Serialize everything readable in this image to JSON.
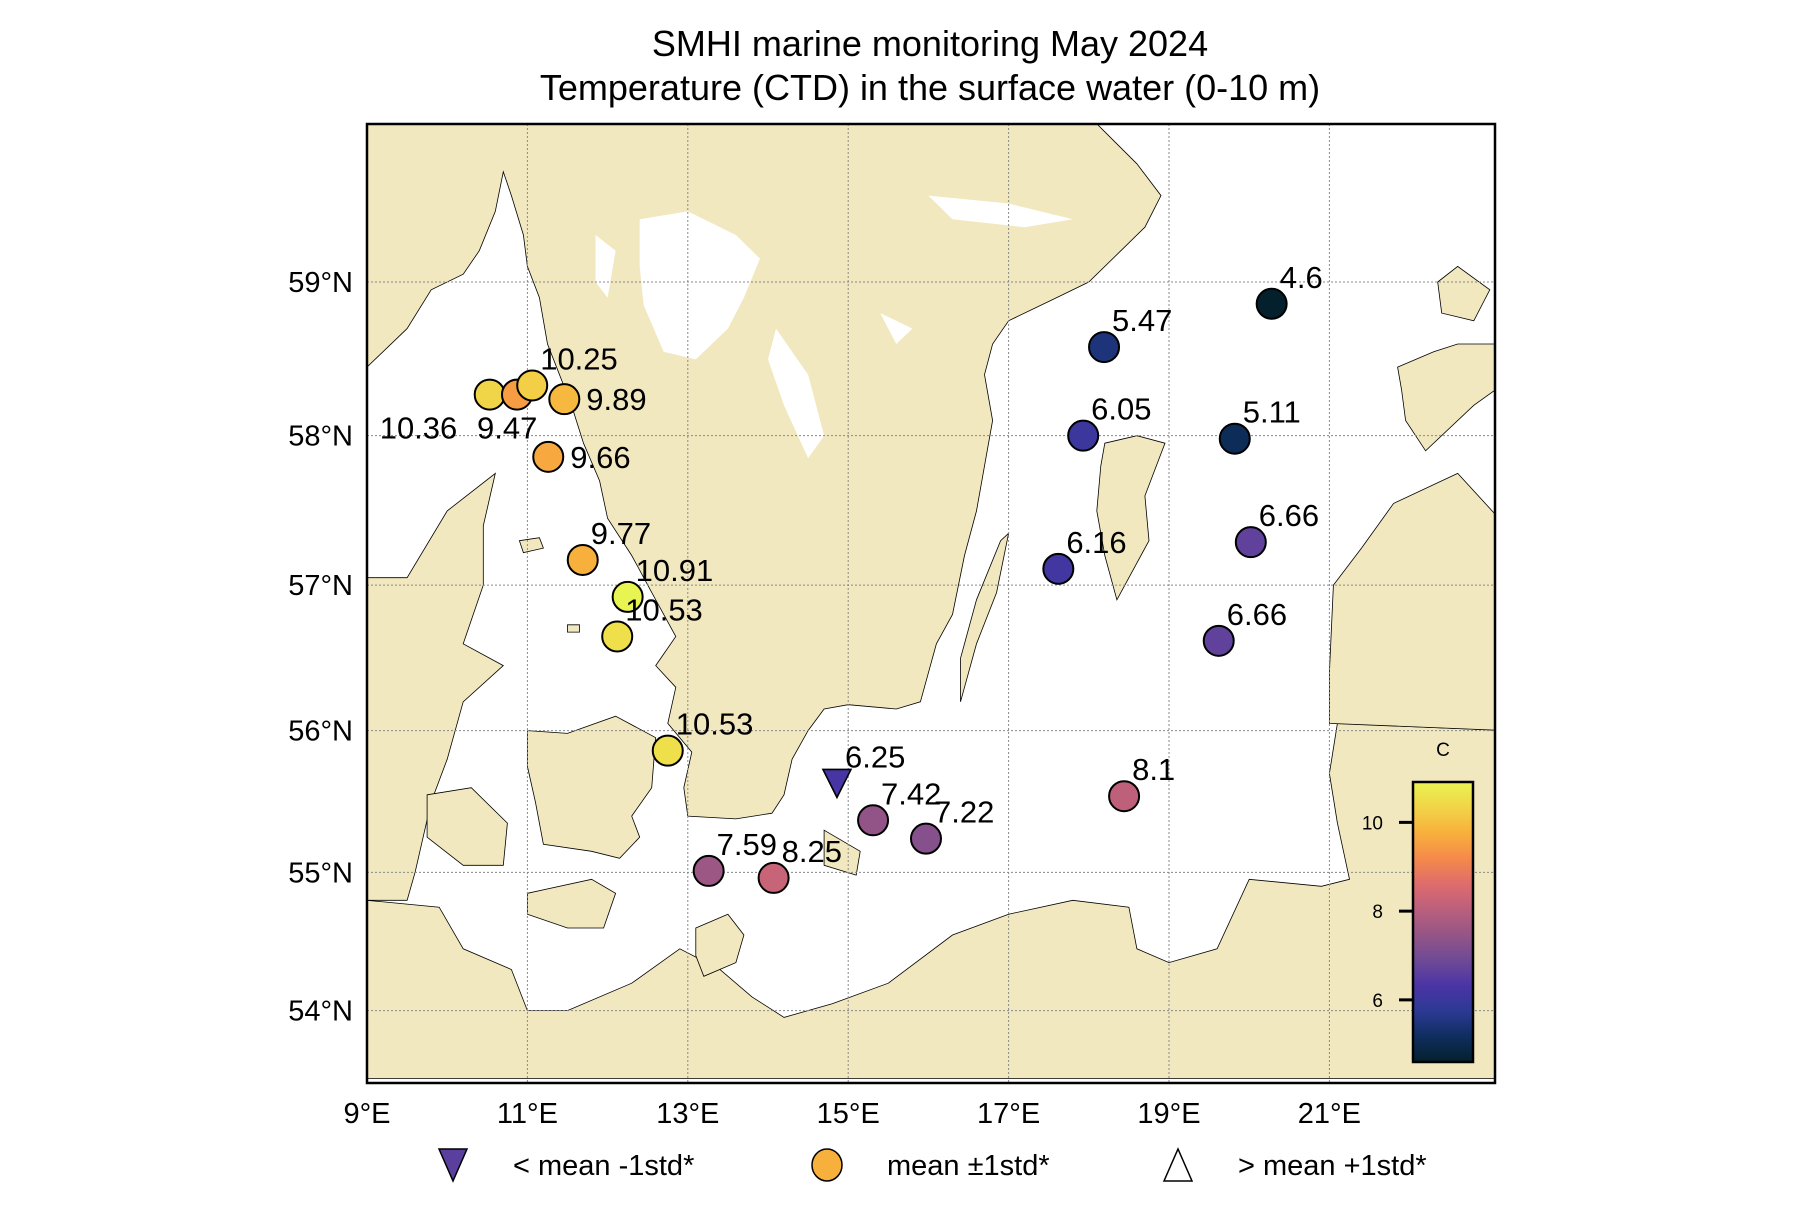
{
  "chart_data": {
    "type": "scatter",
    "map_type": "station map",
    "title": "SMHI marine monitoring May 2024",
    "subtitle": "Temperature (CTD) in the surface water (0-10 m)",
    "extent": {
      "lon": [
        9.0,
        23.07
      ],
      "lat": [
        53.6,
        60.0
      ]
    },
    "grid": true,
    "xticks": [
      {
        "value": 9,
        "label": "9°E"
      },
      {
        "value": 11,
        "label": "11°E"
      },
      {
        "value": 13,
        "label": "13°E"
      },
      {
        "value": 15,
        "label": "15°E"
      },
      {
        "value": 17,
        "label": "17°E"
      },
      {
        "value": 19,
        "label": "19°E"
      },
      {
        "value": 21,
        "label": "21°E"
      }
    ],
    "yticks": [
      {
        "value": 54,
        "label": "54°N"
      },
      {
        "value": 55,
        "label": "55°N"
      },
      {
        "value": 56,
        "label": "56°N"
      },
      {
        "value": 57,
        "label": "57°N"
      },
      {
        "value": 58,
        "label": "58°N"
      },
      {
        "value": 59,
        "label": "59°N"
      }
    ],
    "colorbar": {
      "label": "C",
      "range": [
        4.6,
        10.91
      ],
      "ticks": [
        6,
        8,
        10
      ],
      "colormap": "thermal",
      "stops": [
        "#04202c",
        "#0f2d5e",
        "#2b3a94",
        "#4b34a5",
        "#6f4a95",
        "#955586",
        "#bb5f7d",
        "#df6c6c",
        "#f58a4a",
        "#f8b03c",
        "#f1d448",
        "#e8f451"
      ],
      "placement": "lower-right"
    },
    "stations": [
      {
        "value": 10.36,
        "label": "10.36",
        "lon": 10.53,
        "lat": 58.27,
        "symbol": "circle",
        "label_pos": "below-left"
      },
      {
        "value": 9.47,
        "label": "9.47",
        "lon": 10.87,
        "lat": 58.27,
        "symbol": "circle",
        "label_pos": "below"
      },
      {
        "value": 10.25,
        "label": "10.25",
        "lon": 11.06,
        "lat": 58.33,
        "symbol": "circle",
        "label_pos": "above-right"
      },
      {
        "value": 9.89,
        "label": "9.89",
        "lon": 11.46,
        "lat": 58.24,
        "symbol": "circle",
        "label_pos": "right"
      },
      {
        "value": 9.66,
        "label": "9.66",
        "lon": 11.26,
        "lat": 57.86,
        "symbol": "circle",
        "label_pos": "right"
      },
      {
        "value": 9.77,
        "label": "9.77",
        "lon": 11.69,
        "lat": 57.17,
        "symbol": "circle",
        "label_pos": "above-right"
      },
      {
        "value": 10.91,
        "label": "10.91",
        "lon": 12.25,
        "lat": 56.92,
        "symbol": "circle",
        "label_pos": "above-right"
      },
      {
        "value": 10.53,
        "label": "10.53",
        "lon": 12.12,
        "lat": 56.65,
        "symbol": "circle",
        "label_pos": "above-right"
      },
      {
        "value": 10.53,
        "label": "10.53",
        "lon": 12.75,
        "lat": 55.86,
        "symbol": "circle",
        "label_pos": "above-right"
      },
      {
        "value": 6.25,
        "label": "6.25",
        "lon": 14.86,
        "lat": 55.63,
        "symbol": "triangle-down",
        "label_pos": "above-right"
      },
      {
        "value": 7.42,
        "label": "7.42",
        "lon": 15.31,
        "lat": 55.37,
        "symbol": "circle",
        "label_pos": "above-right"
      },
      {
        "value": 7.22,
        "label": "7.22",
        "lon": 15.97,
        "lat": 55.24,
        "symbol": "circle",
        "label_pos": "above-right"
      },
      {
        "value": 7.59,
        "label": "7.59",
        "lon": 13.26,
        "lat": 55.01,
        "symbol": "circle",
        "label_pos": "above-right"
      },
      {
        "value": 8.25,
        "label": "8.25",
        "lon": 14.07,
        "lat": 54.96,
        "symbol": "circle",
        "label_pos": "above-right"
      },
      {
        "value": 8.1,
        "label": "8.1",
        "lon": 18.44,
        "lat": 55.54,
        "symbol": "circle",
        "label_pos": "above-right"
      },
      {
        "value": 6.66,
        "label": "6.66",
        "lon": 19.62,
        "lat": 56.62,
        "symbol": "circle",
        "label_pos": "above-right"
      },
      {
        "value": 6.66,
        "label": "6.66",
        "lon": 20.02,
        "lat": 57.29,
        "symbol": "circle",
        "label_pos": "above-right"
      },
      {
        "value": 6.16,
        "label": "6.16",
        "lon": 17.62,
        "lat": 57.11,
        "symbol": "circle",
        "label_pos": "above-right"
      },
      {
        "value": 6.05,
        "label": "6.05",
        "lon": 17.93,
        "lat": 58.0,
        "symbol": "circle",
        "label_pos": "above-right"
      },
      {
        "value": 5.11,
        "label": "5.11",
        "lon": 19.82,
        "lat": 57.98,
        "symbol": "circle",
        "label_pos": "above-right"
      },
      {
        "value": 5.47,
        "label": "5.47",
        "lon": 18.19,
        "lat": 58.58,
        "symbol": "circle",
        "label_pos": "above-right"
      },
      {
        "value": 4.6,
        "label": "4.6",
        "lon": 20.28,
        "lat": 58.86,
        "symbol": "circle",
        "label_pos": "above-right"
      }
    ],
    "legend": {
      "placement": "bottom",
      "items": [
        {
          "symbol": "triangle-down",
          "color": "#5b3f9e",
          "label": "< mean -1std*"
        },
        {
          "symbol": "circle",
          "color": "#f8b03c",
          "label": "mean ±1std*"
        },
        {
          "symbol": "triangle-up",
          "color": "#ffffff",
          "label": "> mean +1std*"
        }
      ]
    }
  },
  "colors": {
    "land": "#f2e8bf",
    "sea": "#ffffff",
    "coast": "#000000",
    "grid": "#888888"
  }
}
